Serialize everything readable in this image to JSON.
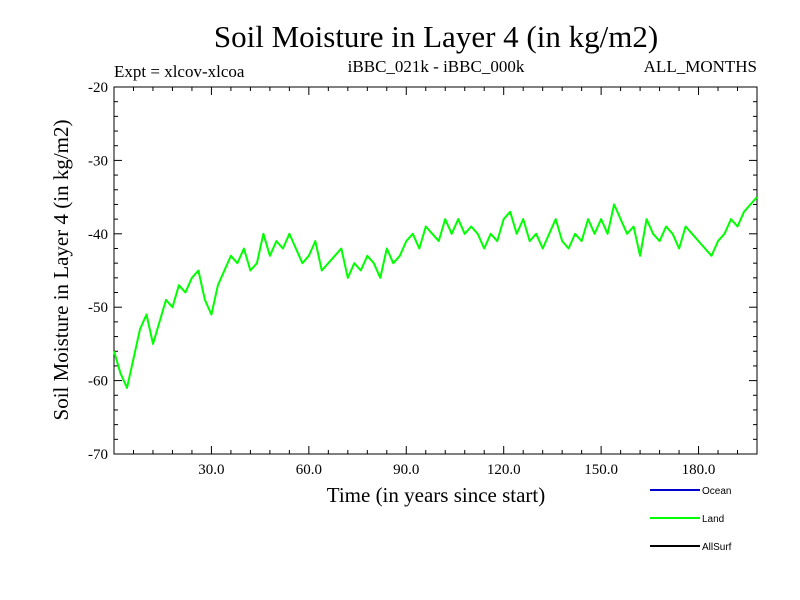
{
  "chart_data": {
    "type": "line",
    "title": "Soil Moisture in Layer 4 (in kg/m2)",
    "subtitle_left": "Expt = xlcov-xlcoa",
    "subtitle_center": "iBBC_021k - iBBC_000k",
    "subtitle_right": "ALL_MONTHS",
    "xlabel": "Time (in years since start)",
    "ylabel": "Soil Moisture in Layer 4 (in kg/m2)",
    "xlim": [
      0,
      198
    ],
    "ylim": [
      -70,
      -20
    ],
    "xticks": [
      30,
      60,
      90,
      120,
      150,
      180
    ],
    "xtick_labels": [
      "30.0",
      "60.0",
      "90.0",
      "120.0",
      "150.0",
      "180.0"
    ],
    "yticks": [
      -20,
      -30,
      -40,
      -50,
      -60,
      -70
    ],
    "ytick_labels": [
      "-20",
      "-30",
      "-40",
      "-50",
      "-60",
      "-70"
    ],
    "grid": false,
    "legend_position": "bottom-right",
    "legend": [
      {
        "name": "Ocean",
        "color": "#0000cc"
      },
      {
        "name": "Land",
        "color": "#00ff00"
      },
      {
        "name": "AllSurf",
        "color": "#000000"
      }
    ],
    "series": [
      {
        "name": "Land",
        "color": "#00ff00",
        "x": [
          0,
          2,
          4,
          6,
          8,
          10,
          12,
          14,
          16,
          18,
          20,
          22,
          24,
          26,
          28,
          30,
          32,
          34,
          36,
          38,
          40,
          42,
          44,
          46,
          48,
          50,
          52,
          54,
          56,
          58,
          60,
          62,
          64,
          66,
          68,
          70,
          72,
          74,
          76,
          78,
          80,
          82,
          84,
          86,
          88,
          90,
          92,
          94,
          96,
          98,
          100,
          102,
          104,
          106,
          108,
          110,
          112,
          114,
          116,
          118,
          120,
          122,
          124,
          126,
          128,
          130,
          132,
          134,
          136,
          138,
          140,
          142,
          144,
          146,
          148,
          150,
          152,
          154,
          156,
          158,
          160,
          162,
          164,
          166,
          168,
          170,
          172,
          174,
          176,
          178,
          180,
          182,
          184,
          186,
          188,
          190,
          192,
          194,
          196,
          198
        ],
        "values": [
          -56,
          -59,
          -61,
          -57,
          -53,
          -51,
          -55,
          -52,
          -49,
          -50,
          -47,
          -48,
          -46,
          -45,
          -49,
          -51,
          -47,
          -45,
          -43,
          -44,
          -42,
          -45,
          -44,
          -40,
          -43,
          -41,
          -42,
          -40,
          -42,
          -44,
          -43,
          -41,
          -45,
          -44,
          -43,
          -42,
          -46,
          -44,
          -45,
          -43,
          -44,
          -46,
          -42,
          -44,
          -43,
          -41,
          -40,
          -42,
          -39,
          -40,
          -41,
          -38,
          -40,
          -38,
          -40,
          -39,
          -40,
          -42,
          -40,
          -41,
          -38,
          -37,
          -40,
          -38,
          -41,
          -40,
          -42,
          -40,
          -38,
          -41,
          -42,
          -40,
          -41,
          -38,
          -40,
          -38,
          -40,
          -36,
          -38,
          -40,
          -39,
          -43,
          -38,
          -40,
          -41,
          -39,
          -40,
          -42,
          -39,
          -40,
          -41,
          -42,
          -43,
          -41,
          -40,
          -38,
          -39,
          -37,
          -36,
          -35
        ]
      }
    ]
  }
}
